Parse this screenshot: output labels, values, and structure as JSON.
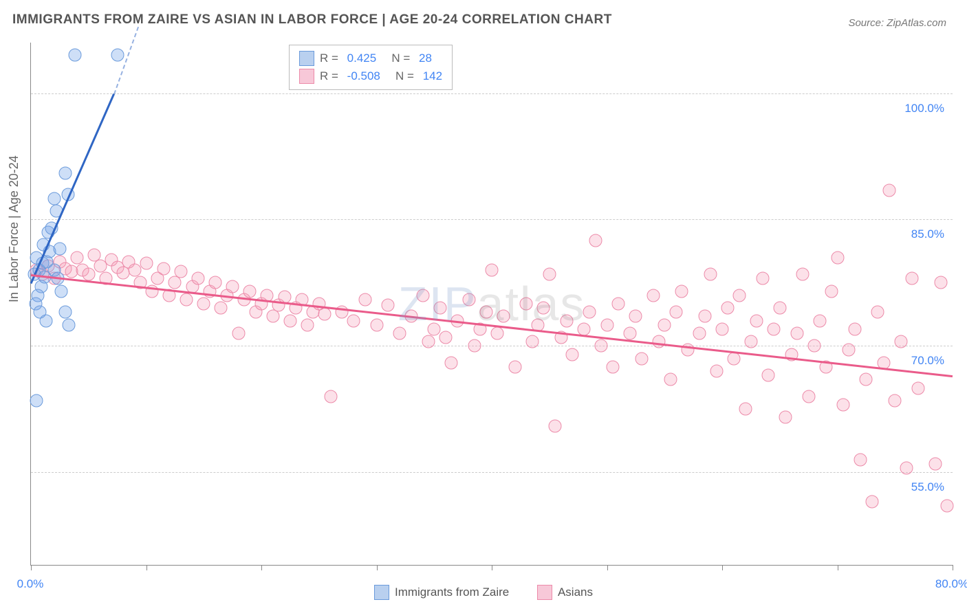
{
  "title": "IMMIGRANTS FROM ZAIRE VS ASIAN IN LABOR FORCE | AGE 20-24 CORRELATION CHART",
  "source": "Source: ZipAtlas.com",
  "ylabel": "In Labor Force | Age 20-24",
  "watermark": "ZIPatlas",
  "chart": {
    "type": "scatter",
    "background_color": "#ffffff",
    "grid_color": "#cccccc",
    "axis_color": "#888888",
    "text_color": "#666666",
    "tick_label_color": "#4285f4",
    "tick_fontsize": 17,
    "title_fontsize": 19,
    "ylabel_fontsize": 18,
    "xlim": [
      0,
      80
    ],
    "ylim": [
      44,
      106
    ],
    "xticks": [
      0,
      10,
      20,
      30,
      40,
      50,
      60,
      70,
      80
    ],
    "xtick_labels": {
      "0": "0.0%",
      "80": "80.0%"
    },
    "yticks": [
      55,
      70,
      85,
      100
    ],
    "ytick_labels": {
      "55": "55.0%",
      "70": "70.0%",
      "85": "85.0%",
      "100": "100.0%"
    },
    "point_radius": 9.5,
    "point_border_width": 1,
    "trend_line_width": 3,
    "series": [
      {
        "name": "Immigrants from Zaire",
        "fill_color": "rgba(116,163,232,0.35)",
        "border_color": "#6a9adb",
        "swatch_fill": "#b9d0ef",
        "swatch_border": "#6a9adb",
        "R": "0.425",
        "N": "28",
        "trend": {
          "x1": 0,
          "y1": 77.5,
          "x2": 7.2,
          "y2": 100,
          "color": "#2f66c4",
          "dashed_extend": true,
          "dash_x2": 9.3
        },
        "points": [
          [
            0.3,
            78.5
          ],
          [
            0.5,
            80.5
          ],
          [
            0.7,
            79.0
          ],
          [
            0.9,
            77.0
          ],
          [
            1.0,
            79.8
          ],
          [
            1.2,
            78.2
          ],
          [
            1.4,
            80.0
          ],
          [
            1.6,
            81.2
          ],
          [
            1.1,
            82.0
          ],
          [
            1.5,
            83.5
          ],
          [
            0.6,
            76.0
          ],
          [
            0.4,
            75.0
          ],
          [
            0.8,
            74.0
          ],
          [
            1.3,
            73.0
          ],
          [
            2.0,
            79.0
          ],
          [
            2.3,
            78.0
          ],
          [
            2.6,
            76.5
          ],
          [
            3.0,
            74.0
          ],
          [
            3.3,
            72.5
          ],
          [
            1.8,
            84.0
          ],
          [
            2.2,
            86.0
          ],
          [
            2.0,
            87.5
          ],
          [
            3.2,
            88.0
          ],
          [
            3.0,
            90.5
          ],
          [
            3.8,
            104.5
          ],
          [
            7.5,
            104.5
          ],
          [
            0.5,
            63.5
          ],
          [
            2.5,
            81.5
          ]
        ]
      },
      {
        "name": "Asians",
        "fill_color": "rgba(244,154,182,0.30)",
        "border_color": "#ec8aa9",
        "swatch_fill": "#f7c8d8",
        "swatch_border": "#ec8aa9",
        "R": "-0.508",
        "N": "142",
        "trend": {
          "x1": 0,
          "y1": 78.5,
          "x2": 80,
          "y2": 66.5,
          "color": "#ea5b8a",
          "dashed_extend": false
        },
        "points": [
          [
            0.5,
            79.0
          ],
          [
            1.0,
            78.5
          ],
          [
            1.5,
            79.5
          ],
          [
            2.0,
            78.0
          ],
          [
            2.5,
            80.0
          ],
          [
            3.0,
            79.2
          ],
          [
            3.5,
            78.8
          ],
          [
            4.0,
            80.5
          ],
          [
            4.5,
            79.0
          ],
          [
            5.0,
            78.5
          ],
          [
            5.5,
            80.8
          ],
          [
            6.0,
            79.5
          ],
          [
            6.5,
            78.0
          ],
          [
            7.0,
            80.2
          ],
          [
            7.5,
            79.3
          ],
          [
            8.0,
            78.7
          ],
          [
            8.5,
            80.0
          ],
          [
            9.0,
            79.0
          ],
          [
            9.5,
            77.5
          ],
          [
            10.0,
            79.8
          ],
          [
            10.5,
            76.5
          ],
          [
            11.0,
            78.0
          ],
          [
            11.5,
            79.2
          ],
          [
            12.0,
            76.0
          ],
          [
            12.5,
            77.5
          ],
          [
            13.0,
            78.8
          ],
          [
            13.5,
            75.5
          ],
          [
            14.0,
            77.0
          ],
          [
            14.5,
            78.0
          ],
          [
            15.0,
            75.0
          ],
          [
            15.5,
            76.5
          ],
          [
            16.0,
            77.5
          ],
          [
            16.5,
            74.5
          ],
          [
            17.0,
            76.0
          ],
          [
            17.5,
            77.0
          ],
          [
            18.0,
            71.5
          ],
          [
            18.5,
            75.5
          ],
          [
            19.0,
            76.5
          ],
          [
            19.5,
            74.0
          ],
          [
            20.0,
            75.0
          ],
          [
            20.5,
            76.0
          ],
          [
            21.0,
            73.5
          ],
          [
            21.5,
            74.8
          ],
          [
            22.0,
            75.8
          ],
          [
            22.5,
            73.0
          ],
          [
            23.0,
            74.5
          ],
          [
            23.5,
            75.5
          ],
          [
            24.0,
            72.5
          ],
          [
            24.5,
            74.0
          ],
          [
            25.0,
            75.0
          ],
          [
            25.5,
            73.8
          ],
          [
            26.0,
            64.0
          ],
          [
            27.0,
            74.0
          ],
          [
            28.0,
            73.0
          ],
          [
            29.0,
            75.5
          ],
          [
            30.0,
            72.5
          ],
          [
            31.0,
            74.8
          ],
          [
            32.0,
            71.5
          ],
          [
            33.0,
            73.5
          ],
          [
            34.0,
            76.0
          ],
          [
            34.5,
            70.5
          ],
          [
            35.0,
            72.0
          ],
          [
            35.5,
            74.5
          ],
          [
            36.0,
            71.0
          ],
          [
            36.5,
            68.0
          ],
          [
            37.0,
            73.0
          ],
          [
            38.0,
            75.5
          ],
          [
            38.5,
            70.0
          ],
          [
            39.0,
            72.0
          ],
          [
            39.5,
            74.0
          ],
          [
            40.0,
            79.0
          ],
          [
            40.5,
            71.5
          ],
          [
            41.0,
            73.5
          ],
          [
            42.0,
            67.5
          ],
          [
            43.0,
            75.0
          ],
          [
            43.5,
            70.5
          ],
          [
            44.0,
            72.5
          ],
          [
            44.5,
            74.5
          ],
          [
            45.0,
            78.5
          ],
          [
            45.5,
            60.5
          ],
          [
            46.0,
            71.0
          ],
          [
            46.5,
            73.0
          ],
          [
            47.0,
            69.0
          ],
          [
            48.0,
            72.0
          ],
          [
            48.5,
            74.0
          ],
          [
            49.0,
            82.5
          ],
          [
            49.5,
            70.0
          ],
          [
            50.0,
            72.5
          ],
          [
            50.5,
            67.5
          ],
          [
            51.0,
            75.0
          ],
          [
            52.0,
            71.5
          ],
          [
            52.5,
            73.5
          ],
          [
            53.0,
            68.5
          ],
          [
            54.0,
            76.0
          ],
          [
            54.5,
            70.5
          ],
          [
            55.0,
            72.5
          ],
          [
            55.5,
            66.0
          ],
          [
            56.0,
            74.0
          ],
          [
            56.5,
            76.5
          ],
          [
            57.0,
            69.5
          ],
          [
            58.0,
            71.5
          ],
          [
            58.5,
            73.5
          ],
          [
            59.0,
            78.5
          ],
          [
            59.5,
            67.0
          ],
          [
            60.0,
            72.0
          ],
          [
            60.5,
            74.5
          ],
          [
            61.0,
            68.5
          ],
          [
            61.5,
            76.0
          ],
          [
            62.0,
            62.5
          ],
          [
            62.5,
            70.5
          ],
          [
            63.0,
            73.0
          ],
          [
            63.5,
            78.0
          ],
          [
            64.0,
            66.5
          ],
          [
            64.5,
            72.0
          ],
          [
            65.0,
            74.5
          ],
          [
            65.5,
            61.5
          ],
          [
            66.0,
            69.0
          ],
          [
            66.5,
            71.5
          ],
          [
            67.0,
            78.5
          ],
          [
            67.5,
            64.0
          ],
          [
            68.0,
            70.0
          ],
          [
            68.5,
            73.0
          ],
          [
            69.0,
            67.5
          ],
          [
            69.5,
            76.5
          ],
          [
            70.0,
            80.5
          ],
          [
            70.5,
            63.0
          ],
          [
            71.0,
            69.5
          ],
          [
            71.5,
            72.0
          ],
          [
            72.0,
            56.5
          ],
          [
            72.5,
            66.0
          ],
          [
            73.0,
            51.5
          ],
          [
            73.5,
            74.0
          ],
          [
            74.0,
            68.0
          ],
          [
            74.5,
            88.5
          ],
          [
            75.0,
            63.5
          ],
          [
            75.5,
            70.5
          ],
          [
            76.0,
            55.5
          ],
          [
            76.5,
            78.0
          ],
          [
            77.0,
            65.0
          ],
          [
            78.5,
            56.0
          ],
          [
            79.0,
            77.5
          ],
          [
            79.5,
            51.0
          ]
        ]
      }
    ]
  },
  "legend_bottom": [
    {
      "label": "Immigrants from Zaire",
      "swatch_fill": "#b9d0ef",
      "swatch_border": "#6a9adb"
    },
    {
      "label": "Asians",
      "swatch_fill": "#f7c8d8",
      "swatch_border": "#ec8aa9"
    }
  ]
}
